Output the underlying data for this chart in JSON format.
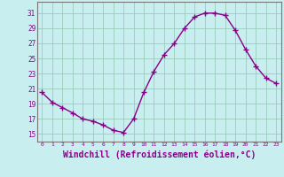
{
  "x": [
    0,
    1,
    2,
    3,
    4,
    5,
    6,
    7,
    8,
    9,
    10,
    11,
    12,
    13,
    14,
    15,
    16,
    17,
    18,
    19,
    20,
    21,
    22,
    23
  ],
  "y": [
    20.5,
    19.2,
    18.5,
    17.8,
    17.0,
    16.7,
    16.2,
    15.5,
    15.2,
    17.0,
    20.5,
    23.3,
    25.5,
    27.0,
    29.0,
    30.5,
    31.0,
    31.0,
    30.7,
    28.7,
    26.2,
    24.0,
    22.4,
    21.7
  ],
  "line_color": "#880088",
  "marker": "+",
  "marker_size": 4,
  "bg_color": "#c8eef0",
  "grid_color": "#99ccbb",
  "xlabel": "Windchill (Refroidissement éolien,°C)",
  "xlabel_fontsize": 7,
  "ytick_labels": [
    "15",
    "17",
    "19",
    "21",
    "23",
    "25",
    "27",
    "29",
    "31"
  ],
  "ytick_vals": [
    15,
    17,
    19,
    21,
    23,
    25,
    27,
    29,
    31
  ],
  "xtick_vals": [
    0,
    1,
    2,
    3,
    4,
    5,
    6,
    7,
    8,
    9,
    10,
    11,
    12,
    13,
    14,
    15,
    16,
    17,
    18,
    19,
    20,
    21,
    22,
    23
  ],
  "ylim": [
    14.0,
    32.5
  ],
  "xlim": [
    -0.5,
    23.5
  ]
}
